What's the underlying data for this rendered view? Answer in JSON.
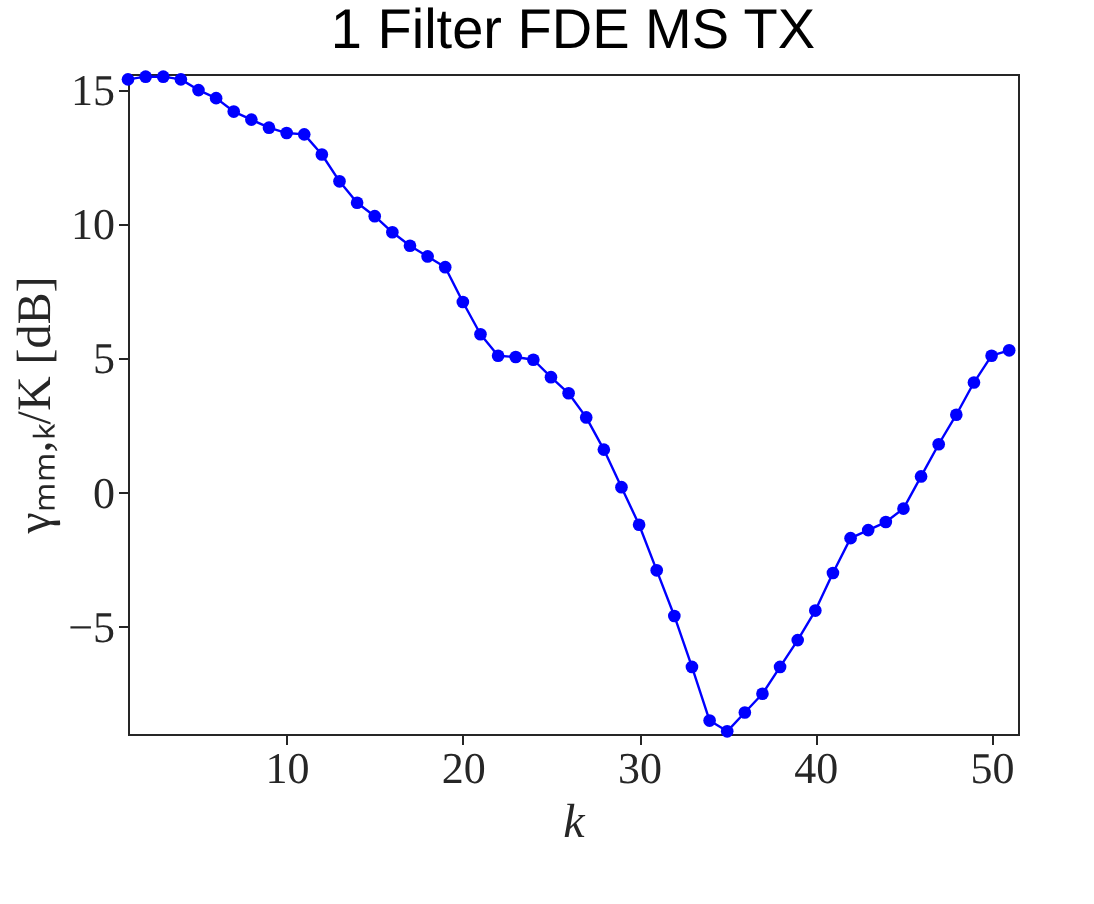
{
  "chart_data": {
    "type": "line",
    "title": "1 Filter FDE MS TX",
    "xlabel": "k",
    "ylabel": "γₘₘ,ₖ/K [dB]",
    "x": [
      1,
      2,
      3,
      4,
      5,
      6,
      7,
      8,
      9,
      10,
      11,
      12,
      13,
      14,
      15,
      16,
      17,
      18,
      19,
      20,
      21,
      22,
      23,
      24,
      25,
      26,
      27,
      28,
      29,
      30,
      31,
      32,
      33,
      34,
      35,
      36,
      37,
      38,
      39,
      40,
      41,
      42,
      43,
      44,
      45,
      46,
      47,
      48,
      49,
      50,
      51
    ],
    "series": [
      {
        "color": "#0000ff",
        "values": [
          15.4,
          15.5,
          15.5,
          15.4,
          15.0,
          14.7,
          14.2,
          13.9,
          13.6,
          13.4,
          13.35,
          12.6,
          11.6,
          10.8,
          10.3,
          9.7,
          9.2,
          8.8,
          8.4,
          7.1,
          5.9,
          5.1,
          5.05,
          4.95,
          4.3,
          3.7,
          2.8,
          1.6,
          0.2,
          -1.2,
          -2.9,
          -4.6,
          -6.5,
          -8.5,
          -8.9,
          -8.2,
          -7.5,
          -6.5,
          -5.5,
          -4.4,
          -3.0,
          -1.7,
          -1.4,
          -1.1,
          -0.6,
          0.6,
          1.8,
          2.9,
          4.1,
          5.1,
          5.3
        ]
      }
    ],
    "xlim": [
      1,
      51.5
    ],
    "xticks": [
      10,
      20,
      30,
      40,
      50
    ],
    "ylim": [
      -9,
      15.6
    ],
    "yticks": [
      -5,
      0,
      5,
      10,
      15
    ],
    "grid": false,
    "marker": "circle",
    "line_style": "solid"
  }
}
